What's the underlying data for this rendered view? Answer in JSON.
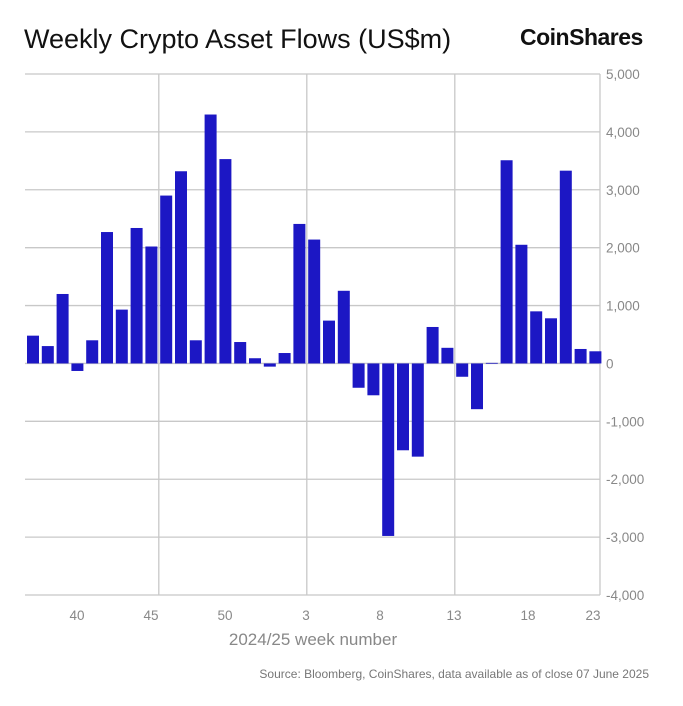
{
  "chart_data": {
    "type": "bar",
    "title": "Weekly Crypto Asset Flows (US$m)",
    "xlabel": "2024/25 week number",
    "ylabel": "",
    "ylim": [
      -4000,
      5000
    ],
    "yticks": [
      "5,000",
      "4,000",
      "3,000",
      "2,000",
      "1,000",
      "0",
      "-1,000",
      "-2,000",
      "-3,000",
      "-4,000"
    ],
    "ytick_values": [
      5000,
      4000,
      3000,
      2000,
      1000,
      0,
      -1000,
      -2000,
      -3000,
      -4000
    ],
    "xtick_labels": [
      "40",
      "45",
      "50",
      "3",
      "8",
      "13",
      "18",
      "23"
    ],
    "grid": true,
    "color": "#1c17c4",
    "categories": [
      "37",
      "38",
      "39",
      "40",
      "41",
      "42",
      "43",
      "44",
      "45",
      "46",
      "47",
      "48",
      "49",
      "50",
      "51",
      "52",
      "1",
      "2",
      "3",
      "4",
      "5",
      "6",
      "7",
      "8",
      "9",
      "10",
      "11",
      "12",
      "13",
      "14",
      "15",
      "16",
      "17",
      "18",
      "19",
      "20",
      "21",
      "22",
      "23"
    ],
    "values": [
      480,
      300,
      1200,
      -130,
      400,
      2270,
      930,
      2340,
      2020,
      2900,
      3320,
      400,
      4300,
      3530,
      370,
      90,
      -55,
      180,
      2410,
      2140,
      740,
      1255,
      -420,
      -550,
      -2980,
      -1500,
      -1610,
      630,
      270,
      -230,
      -790,
      10,
      3510,
      2050,
      900,
      780,
      3330,
      250,
      210
    ]
  },
  "brand": "CoinShares",
  "source": "Source: Bloomberg, CoinShares, data available as of close 07 June 2025"
}
